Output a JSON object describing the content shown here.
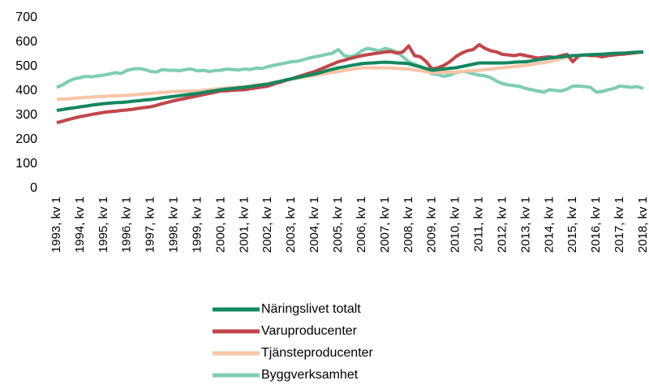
{
  "chart_data": {
    "type": "line",
    "categories": [
      "1993, kv 1",
      null,
      null,
      null,
      "1994, kv 1",
      null,
      null,
      null,
      "1995, kv 1",
      null,
      null,
      null,
      "1996, kv 1",
      null,
      null,
      null,
      "1997, kv 1",
      null,
      null,
      null,
      "1998, kv 1",
      null,
      null,
      null,
      "1999, kv 1",
      null,
      null,
      null,
      "2000, kv 1",
      null,
      null,
      null,
      "2001, kv 1",
      null,
      null,
      null,
      "2002, kv 1",
      null,
      null,
      null,
      "2003, kv 1",
      null,
      null,
      null,
      "2004, kv 1",
      null,
      null,
      null,
      "2005, kv 1",
      null,
      null,
      null,
      "2006, kv 1",
      null,
      null,
      null,
      "2007, kv 1",
      null,
      null,
      null,
      "2008, kv 1",
      null,
      null,
      null,
      "2009, kv 1",
      null,
      null,
      null,
      "2010, kv 1",
      null,
      null,
      null,
      "2011, kv 1",
      null,
      null,
      null,
      "2012, kv 1",
      null,
      null,
      null,
      "2013, kv 1",
      null,
      null,
      null,
      "2014, kv 1",
      null,
      null,
      null,
      "2015, kv 1",
      null,
      null,
      null,
      "2016, kv 1",
      null,
      null,
      null,
      "2017, kv 1",
      null,
      null,
      null,
      "2018, kv 1"
    ],
    "series": [
      {
        "name": "Näringslivet totalt",
        "color": "#13875f",
        "values": [
          320,
          324,
          328,
          331,
          335,
          338,
          342,
          345,
          348,
          350,
          352,
          353,
          355,
          358,
          360,
          363,
          365,
          368,
          372,
          375,
          378,
          381,
          384,
          387,
          390,
          394,
          398,
          401,
          405,
          408,
          410,
          413,
          415,
          418,
          422,
          425,
          428,
          434,
          439,
          445,
          450,
          455,
          460,
          465,
          470,
          476,
          483,
          489,
          495,
          499,
          504,
          508,
          512,
          514,
          515,
          517,
          518,
          517,
          515,
          514,
          512,
          505,
          499,
          492,
          485,
          488,
          490,
          493,
          495,
          500,
          505,
          510,
          515,
          515,
          515,
          515,
          515,
          516,
          518,
          519,
          520,
          524,
          528,
          531,
          535,
          538,
          540,
          543,
          545,
          546,
          548,
          549,
          550,
          551,
          553,
          554,
          555,
          556,
          558,
          559,
          560
        ]
      },
      {
        "name": "Varuproducenter",
        "color": "#c0474a",
        "values": [
          270,
          276,
          283,
          289,
          295,
          299,
          304,
          308,
          312,
          315,
          317,
          320,
          322,
          325,
          329,
          332,
          335,
          341,
          348,
          354,
          360,
          365,
          370,
          375,
          380,
          385,
          390,
          395,
          400,
          401,
          403,
          404,
          405,
          409,
          413,
          416,
          420,
          428,
          435,
          443,
          450,
          458,
          465,
          473,
          480,
          490,
          500,
          510,
          520,
          526,
          533,
          539,
          545,
          549,
          553,
          556,
          560,
          562,
          555,
          560,
          585,
          545,
          540,
          520,
          490,
          495,
          505,
          520,
          540,
          555,
          565,
          570,
          590,
          575,
          565,
          560,
          550,
          548,
          545,
          550,
          545,
          540,
          535,
          538,
          540,
          538,
          545,
          550,
          520,
          545,
          548,
          545,
          545,
          540,
          545,
          548,
          550,
          552,
          555,
          558,
          560
        ]
      },
      {
        "name": "Tjänsteproducenter",
        "color": "#f8c5a6",
        "values": [
          365,
          367,
          368,
          370,
          372,
          374,
          375,
          377,
          378,
          379,
          380,
          381,
          382,
          384,
          386,
          388,
          390,
          392,
          394,
          396,
          398,
          398,
          399,
          399,
          400,
          403,
          405,
          408,
          410,
          412,
          414,
          416,
          418,
          421,
          424,
          427,
          430,
          435,
          439,
          444,
          448,
          452,
          457,
          461,
          465,
          469,
          473,
          476,
          480,
          484,
          488,
          491,
          495,
          495,
          495,
          495,
          495,
          494,
          493,
          491,
          490,
          486,
          483,
          479,
          475,
          476,
          477,
          477,
          478,
          480,
          482,
          483,
          485,
          488,
          490,
          493,
          495,
          498,
          500,
          503,
          505,
          509,
          513,
          516,
          520,
          526,
          533,
          539,
          545,
          546,
          548,
          549,
          550,
          551,
          553,
          554,
          555,
          556,
          558,
          559,
          560
        ]
      },
      {
        "name": "Byggverksamhet",
        "color": "#7fcdb3",
        "values": [
          415,
          425,
          440,
          450,
          455,
          460,
          458,
          462,
          465,
          470,
          475,
          472,
          485,
          490,
          492,
          488,
          480,
          478,
          488,
          485,
          485,
          483,
          488,
          490,
          482,
          485,
          480,
          484,
          485,
          490,
          488,
          486,
          490,
          488,
          494,
          492,
          500,
          505,
          510,
          515,
          520,
          522,
          528,
          535,
          540,
          545,
          550,
          555,
          570,
          545,
          540,
          548,
          565,
          575,
          570,
          565,
          575,
          568,
          560,
          540,
          520,
          510,
          500,
          485,
          470,
          468,
          460,
          465,
          475,
          480,
          478,
          470,
          465,
          462,
          455,
          440,
          430,
          425,
          422,
          418,
          410,
          405,
          400,
          395,
          405,
          402,
          400,
          408,
          420,
          420,
          418,
          415,
          395,
          398,
          405,
          410,
          420,
          418,
          415,
          418,
          410
        ]
      }
    ],
    "ylim": [
      0,
      700
    ],
    "yticks": [
      0,
      100,
      200,
      300,
      400,
      500,
      600,
      700
    ],
    "grid": false,
    "legend": "bottom"
  }
}
